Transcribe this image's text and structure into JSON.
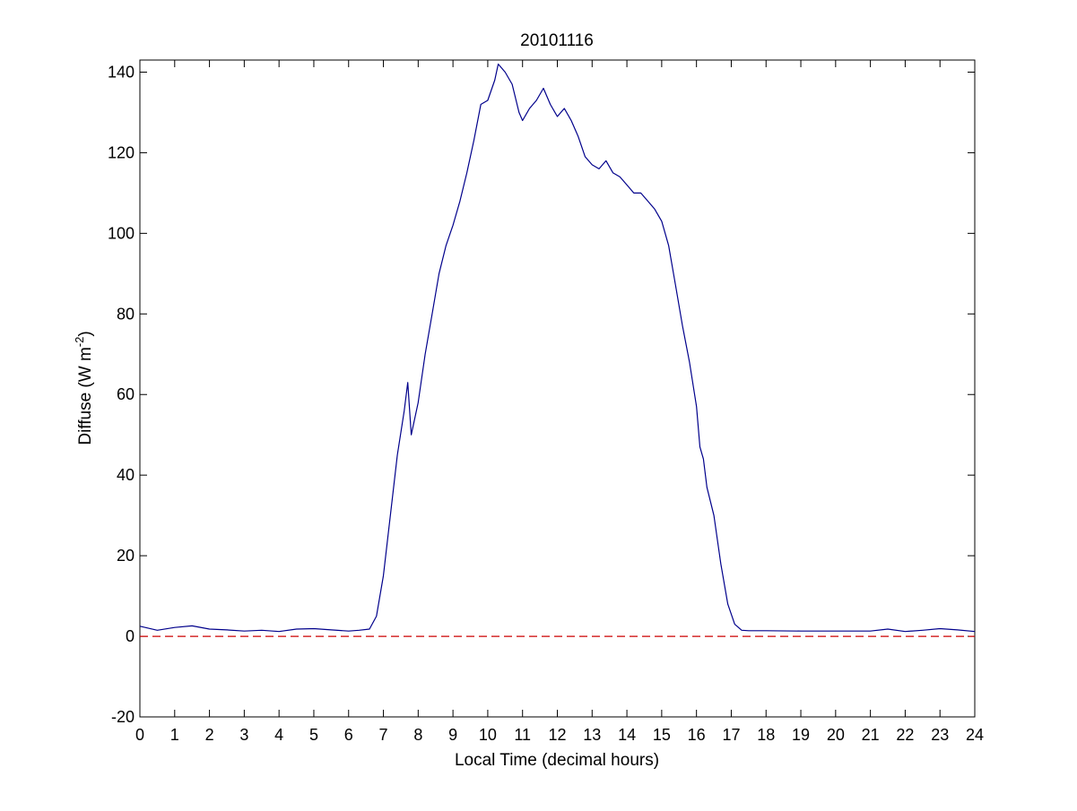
{
  "chart_data": {
    "type": "line",
    "title": "20101116",
    "xlabel": "Local Time (decimal hours)",
    "ylabel": "Diffuse (W m",
    "ylabel_sup": "-2",
    "ylabel_close": ")",
    "xlim": [
      0,
      24
    ],
    "ylim": [
      -20,
      143
    ],
    "x_ticks": [
      "0",
      "1",
      "2",
      "3",
      "4",
      "5",
      "6",
      "7",
      "8",
      "9",
      "10",
      "11",
      "12",
      "13",
      "14",
      "15",
      "16",
      "17",
      "18",
      "19",
      "20",
      "21",
      "22",
      "23",
      "24"
    ],
    "y_ticks": [
      "-20",
      "0",
      "20",
      "40",
      "60",
      "80",
      "100",
      "120",
      "140"
    ],
    "grid": false,
    "series": [
      {
        "color": "#00008b",
        "x": [
          0,
          0.5,
          1,
          1.5,
          2,
          2.5,
          3,
          3.5,
          4,
          4.5,
          5,
          5.5,
          6,
          6.3,
          6.6,
          6.8,
          7.0,
          7.2,
          7.4,
          7.6,
          7.7,
          7.8,
          8.0,
          8.2,
          8.4,
          8.6,
          8.8,
          9.0,
          9.2,
          9.4,
          9.6,
          9.8,
          10.0,
          10.2,
          10.3,
          10.5,
          10.7,
          10.9,
          11.0,
          11.2,
          11.4,
          11.6,
          11.8,
          12.0,
          12.2,
          12.4,
          12.6,
          12.8,
          13.0,
          13.2,
          13.4,
          13.6,
          13.8,
          14.0,
          14.2,
          14.4,
          14.6,
          14.8,
          15.0,
          15.2,
          15.4,
          15.6,
          15.8,
          16.0,
          16.1,
          16.2,
          16.3,
          16.5,
          16.7,
          16.9,
          17.1,
          17.3,
          17.5,
          18,
          19,
          20,
          21,
          21.5,
          22,
          22.5,
          23,
          23.5,
          24
        ],
        "y": [
          2.5,
          1.5,
          2.2,
          2.6,
          1.8,
          1.6,
          1.3,
          1.5,
          1.2,
          1.8,
          1.9,
          1.6,
          1.3,
          1.5,
          1.8,
          5,
          15,
          30,
          45,
          56,
          63,
          50,
          58,
          70,
          80,
          90,
          97,
          102,
          108,
          115,
          123,
          132,
          133,
          138,
          142,
          140,
          137,
          130,
          128,
          131,
          133,
          136,
          132,
          129,
          131,
          128,
          124,
          119,
          117,
          116,
          118,
          115,
          114,
          112,
          110,
          110,
          108,
          106,
          103,
          97,
          87,
          77,
          68,
          57,
          47,
          44,
          37,
          30,
          18,
          8,
          3,
          1.5,
          1.4,
          1.4,
          1.3,
          1.3,
          1.3,
          1.8,
          1.2,
          1.5,
          1.9,
          1.6,
          1.2
        ]
      },
      {
        "color": "#cc0000",
        "dashed": true,
        "x": [
          0,
          24
        ],
        "y": [
          0,
          0
        ]
      }
    ]
  }
}
